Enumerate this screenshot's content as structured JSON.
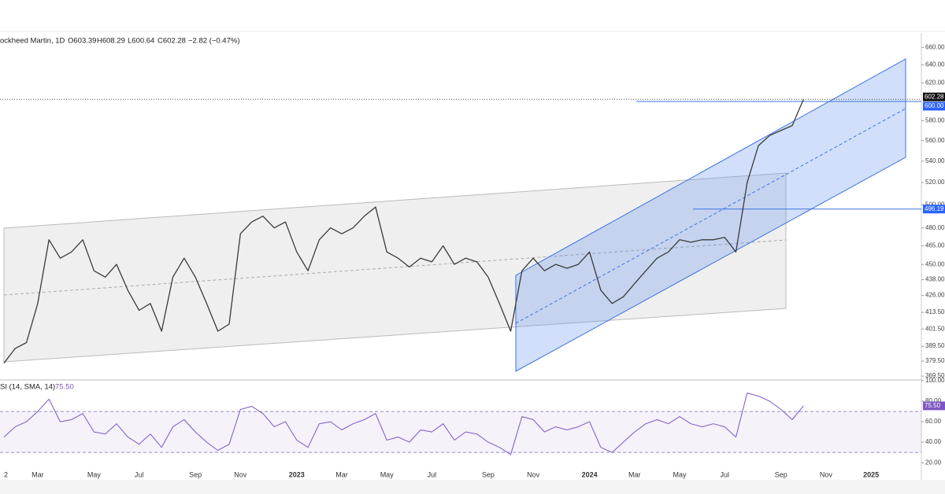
{
  "chart_data": [
    {
      "type": "line",
      "title": "ockheed Martin, 1D",
      "ohlc": [
        "O603.39",
        "H608.29",
        "L600.64",
        "C602.28",
        "−2.82 (−0.47%)"
      ],
      "categories": [
        "2",
        null,
        null,
        "Mar",
        null,
        null,
        null,
        null,
        "May",
        null,
        null,
        null,
        "Jul",
        null,
        null,
        null,
        null,
        "Sep",
        null,
        null,
        null,
        "Nov",
        null,
        null,
        null,
        null,
        "2023",
        null,
        null,
        null,
        "Mar",
        null,
        null,
        null,
        "May",
        null,
        null,
        null,
        "Jul",
        null,
        null,
        null,
        null,
        "Sep",
        null,
        null,
        null,
        "Nov",
        null,
        null,
        null,
        null,
        "2024",
        null,
        null,
        null,
        "Mar",
        null,
        null,
        null,
        "May",
        null,
        null,
        null,
        "Jul",
        null,
        null,
        null,
        null,
        "Sep",
        null,
        null,
        null,
        "Nov",
        null,
        null,
        null,
        "2025",
        null,
        null,
        null,
        null
      ],
      "values": [
        378,
        388,
        392,
        420,
        470,
        455,
        460,
        470,
        445,
        440,
        450,
        430,
        415,
        420,
        400,
        440,
        455,
        440,
        420,
        400,
        405,
        475,
        485,
        490,
        480,
        485,
        460,
        445,
        470,
        480,
        475,
        480,
        490,
        498,
        460,
        455,
        448,
        455,
        452,
        465,
        450,
        455,
        452,
        440,
        420,
        400,
        445,
        455,
        445,
        450,
        447,
        450,
        460,
        430,
        420,
        425,
        435,
        445,
        455,
        460,
        470,
        468,
        470,
        470,
        472,
        460,
        520,
        555,
        565,
        570,
        575,
        602.28,
        null,
        null,
        null,
        null,
        null,
        null,
        null,
        null,
        null,
        null
      ],
      "color": "#3a3a3a",
      "log_scale": true,
      "ylim": [
        367.5,
        677
      ],
      "yticks": [
        {
          "value": 660,
          "label": "660.00"
        },
        {
          "value": 640,
          "label": "640.00"
        },
        {
          "value": 620,
          "label": "620.00"
        },
        {
          "value": 580,
          "label": "580.00"
        },
        {
          "value": 560,
          "label": "560.00"
        },
        {
          "value": 540,
          "label": "540.00"
        },
        {
          "value": 520,
          "label": "520.00"
        },
        {
          "value": 500,
          "label": "500.00"
        },
        {
          "value": 480,
          "label": "480.00"
        },
        {
          "value": 465,
          "label": "465.00"
        },
        {
          "value": 450,
          "label": "450.00"
        },
        {
          "value": 438,
          "label": "438.00"
        },
        {
          "value": 426,
          "label": "426.00"
        },
        {
          "value": 413.5,
          "label": "413.50"
        },
        {
          "value": 401.5,
          "label": "401.50"
        },
        {
          "value": 389.5,
          "label": "389.50"
        },
        {
          "value": 379.5,
          "label": "379.50"
        },
        {
          "value": 369.5,
          "label": "369.50"
        }
      ],
      "last": {
        "value": 602.28,
        "label": "602.28"
      },
      "levels": [
        {
          "value": 600,
          "label": "600.00"
        },
        {
          "value": 496.19,
          "label": "496.19"
        }
      ]
    },
    {
      "type": "line",
      "title": "SI (14, SMA, 14)",
      "value_label": "75.50",
      "values": [
        45,
        55,
        60,
        70,
        82,
        60,
        62,
        68,
        50,
        48,
        58,
        45,
        38,
        48,
        35,
        55,
        62,
        50,
        40,
        32,
        38,
        72,
        75,
        68,
        55,
        60,
        42,
        35,
        58,
        60,
        52,
        58,
        62,
        68,
        42,
        45,
        40,
        52,
        50,
        58,
        42,
        50,
        48,
        40,
        35,
        28,
        65,
        62,
        50,
        55,
        52,
        55,
        60,
        35,
        30,
        40,
        50,
        58,
        62,
        58,
        65,
        58,
        55,
        58,
        55,
        45,
        88,
        85,
        80,
        72,
        62,
        75.5,
        null,
        null,
        null,
        null,
        null,
        null,
        null,
        null,
        null,
        null
      ],
      "color": "#7e57c2",
      "ylim": [
        14,
        100
      ],
      "yticks": [
        {
          "value": 100,
          "label": "100.00"
        },
        {
          "value": 80,
          "label": "80.00"
        },
        {
          "value": 60,
          "label": "60.00"
        },
        {
          "value": 40,
          "label": "40.00"
        },
        {
          "value": 20,
          "label": "20.00"
        }
      ],
      "bands": [
        30,
        70
      ]
    }
  ]
}
